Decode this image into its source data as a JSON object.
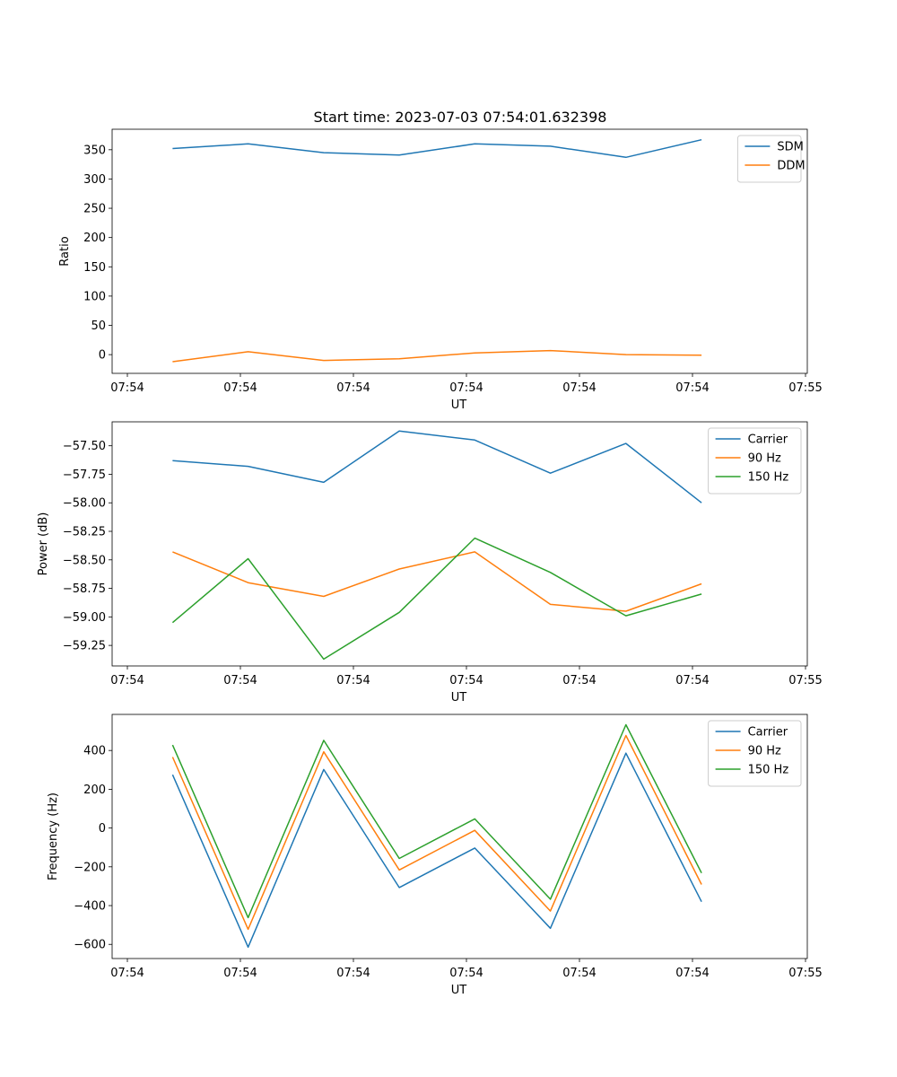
{
  "figure": {
    "title": "Start time: 2023-07-03 07:54:01.632398"
  },
  "chart_data": [
    {
      "type": "line",
      "xlabel": "UT",
      "ylabel": "Ratio",
      "x_tick_labels": [
        "07:54",
        "07:54",
        "07:54",
        "07:54",
        "07:54",
        "07:54",
        "07:55"
      ],
      "x": [
        1,
        2,
        3,
        4,
        5,
        6,
        7,
        8
      ],
      "xlim": [
        0.2,
        9.4
      ],
      "ylim": [
        -32,
        385
      ],
      "yticks": [
        0,
        50,
        100,
        150,
        200,
        250,
        300,
        350
      ],
      "ytick_labels": [
        "0",
        "50",
        "100",
        "150",
        "200",
        "250",
        "300",
        "350"
      ],
      "legend": "top-right",
      "series": [
        {
          "name": "SDM",
          "color": "#1f77b4",
          "values": [
            352,
            360,
            345,
            341,
            360,
            356,
            337,
            367
          ]
        },
        {
          "name": "DDM",
          "color": "#ff7f0e",
          "values": [
            -12,
            5,
            -10,
            -7,
            3,
            7,
            0,
            -1
          ]
        }
      ]
    },
    {
      "type": "line",
      "xlabel": "UT",
      "ylabel": "Power (dB)",
      "x_tick_labels": [
        "07:54",
        "07:54",
        "07:54",
        "07:54",
        "07:54",
        "07:54",
        "07:55"
      ],
      "x": [
        1,
        2,
        3,
        4,
        5,
        6,
        7,
        8
      ],
      "xlim": [
        0.2,
        9.4
      ],
      "ylim": [
        -59.43,
        -57.29
      ],
      "yticks": [
        -59.25,
        -59.0,
        -58.75,
        -58.5,
        -58.25,
        -58.0,
        -57.75,
        -57.5
      ],
      "ytick_labels": [
        "−59.25",
        "−59.00",
        "−58.75",
        "−58.50",
        "−58.25",
        "−58.00",
        "−57.75",
        "−57.50"
      ],
      "legend": "top-right",
      "series": [
        {
          "name": "Carrier",
          "color": "#1f77b4",
          "values": [
            -57.63,
            -57.68,
            -57.82,
            -57.37,
            -57.45,
            -57.74,
            -57.48,
            -58.0
          ]
        },
        {
          "name": "90 Hz",
          "color": "#ff7f0e",
          "values": [
            -58.43,
            -58.7,
            -58.82,
            -58.58,
            -58.43,
            -58.89,
            -58.95,
            -58.71
          ]
        },
        {
          "name": "150 Hz",
          "color": "#2ca02c",
          "values": [
            -59.05,
            -58.49,
            -59.37,
            -58.96,
            -58.31,
            -58.61,
            -58.99,
            -58.8
          ]
        }
      ]
    },
    {
      "type": "line",
      "xlabel": "UT",
      "ylabel": "Frequency (Hz)",
      "x_tick_labels": [
        "07:54",
        "07:54",
        "07:54",
        "07:54",
        "07:54",
        "07:54",
        "07:55"
      ],
      "x": [
        1,
        2,
        3,
        4,
        5,
        6,
        7,
        8
      ],
      "xlim": [
        0.2,
        9.4
      ],
      "ylim": [
        -673,
        586
      ],
      "yticks": [
        -600,
        -400,
        -200,
        0,
        200,
        400
      ],
      "ytick_labels": [
        "−600",
        "−400",
        "−200",
        "0",
        "200",
        "400"
      ],
      "legend": "top-right",
      "series": [
        {
          "name": "Carrier",
          "color": "#1f77b4",
          "values": [
            275,
            -614,
            302,
            -307,
            -103,
            -517,
            386,
            -380
          ]
        },
        {
          "name": "90 Hz",
          "color": "#ff7f0e",
          "values": [
            366,
            -522,
            393,
            -216,
            -12,
            -428,
            477,
            -291
          ]
        },
        {
          "name": "150 Hz",
          "color": "#2ca02c",
          "values": [
            428,
            -462,
            452,
            -157,
            47,
            -367,
            533,
            -232
          ]
        }
      ]
    }
  ]
}
